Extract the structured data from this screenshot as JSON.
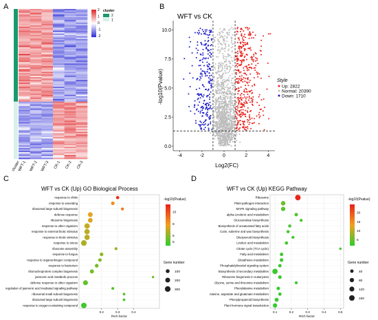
{
  "panels": {
    "a": "A",
    "b": "B",
    "c": "C",
    "d": "D"
  },
  "colors": {
    "heat_low": "#2b2bd6",
    "heat_mid": "#ffffff",
    "heat_high": "#e0262a",
    "cluster_1": "#1a9a6c",
    "cluster_2": "#d8f0ea",
    "up": "#e8201a",
    "down": "#1c1ccc",
    "normal": "#bdbdbd",
    "dot_low": "#2ecc2e",
    "dot_high": "#e8201a"
  },
  "chart_data": [
    {
      "type": "heatmap",
      "legend_title": "cluster",
      "legend_ticks": [
        "2",
        "1",
        "0",
        "-1",
        "-2"
      ],
      "cluster_legend": [
        "2",
        "1"
      ],
      "row_annotation_label": "cluster",
      "columns": [
        "WFT-1",
        "WFT-2",
        "WFT-3",
        "CK-1",
        "CK-2",
        "CK-3"
      ]
    },
    {
      "type": "scatter",
      "title": "WFT vs CK",
      "xlabel": "Log2(FC)",
      "ylabel": "-log10(Pvalue)",
      "xlim": [
        -4.6,
        4.6
      ],
      "ylim": [
        -0.4,
        10.8
      ],
      "xticks": [
        "-4",
        "-2",
        "0",
        "2",
        "4"
      ],
      "yticks": [
        "0.0",
        "2.5",
        "5.0",
        "7.5",
        "10.0"
      ],
      "thresholds": {
        "log2fc": [
          -1,
          1
        ],
        "neg_log10_p": 1.3
      },
      "legend": {
        "title": "Style",
        "entries": [
          "Up: 2822",
          "Normal: 20390",
          "Down: 1710"
        ]
      }
    },
    {
      "type": "scatter",
      "title": "WFT vs CK (Up) GO Biological Process",
      "xlabel": "Rich factor",
      "xticks": [
        0.2,
        0.3,
        0.4
      ],
      "xlim": [
        0.06,
        0.56
      ],
      "color_legend": {
        "title": "-log10(Pvalue)",
        "ticks": [
          10,
          8,
          6,
          5
        ],
        "min": 4.3,
        "max": 11.2
      },
      "size_legend": {
        "title": "Gene number",
        "ticks": [
          100,
          200,
          300
        ]
      },
      "categories": [
        "response to chitin",
        "response to wounding",
        "ribosomal large subunit biogenesis",
        "defense response",
        "ribosome biogenesis",
        "response to other organism",
        "response to external biotic stimulus",
        "response to biotic stimulus",
        "response to stress",
        "ribosome assembly",
        "response to fungus",
        "response to organonitrogen compound",
        "response to bacterium",
        "ribonucleoprotein complex biogenesis",
        "jasmonic acid metabolic process",
        "defense response to other organism",
        "regulation of jasmonic acid mediated signaling pathway",
        "ribosomal small subunit biogenesis",
        "ribosomal large subunit biogenesis",
        "response to oxygen-containing compound"
      ],
      "points": [
        {
          "x": 0.3,
          "p": 10.8,
          "n": 60
        },
        {
          "x": 0.27,
          "p": 8.2,
          "n": 80
        },
        {
          "x": 0.33,
          "p": 8.9,
          "n": 40
        },
        {
          "x": 0.13,
          "p": 7.6,
          "n": 190
        },
        {
          "x": 0.13,
          "p": 7.4,
          "n": 170
        },
        {
          "x": 0.11,
          "p": 7.0,
          "n": 260
        },
        {
          "x": 0.11,
          "p": 6.8,
          "n": 250
        },
        {
          "x": 0.11,
          "p": 6.8,
          "n": 250
        },
        {
          "x": 0.09,
          "p": 6.5,
          "n": 310
        },
        {
          "x": 0.29,
          "p": 6.3,
          "n": 40
        },
        {
          "x": 0.2,
          "p": 6.0,
          "n": 80
        },
        {
          "x": 0.19,
          "p": 5.8,
          "n": 70
        },
        {
          "x": 0.17,
          "p": 5.6,
          "n": 90
        },
        {
          "x": 0.14,
          "p": 5.5,
          "n": 120
        },
        {
          "x": 0.52,
          "p": 5.4,
          "n": 15
        },
        {
          "x": 0.1,
          "p": 5.2,
          "n": 210
        },
        {
          "x": 0.27,
          "p": 5.0,
          "n": 35
        },
        {
          "x": 0.34,
          "p": 4.9,
          "n": 25
        },
        {
          "x": 0.34,
          "p": 4.8,
          "n": 25
        },
        {
          "x": 0.09,
          "p": 4.6,
          "n": 280
        }
      ]
    },
    {
      "type": "scatter",
      "title": "WFT vs CK (Up) KEGG Pathway",
      "xlabel": "Rich factor",
      "xticks": [
        0.1,
        0.2,
        0.3,
        0.4,
        0.5
      ],
      "xlim": [
        0.07,
        0.52
      ],
      "color_legend": {
        "title": "-log10(Pvalue)",
        "ticks": [
          20,
          15,
          10,
          5
        ],
        "min": 1.5,
        "max": 24.5
      },
      "size_legend": {
        "title": "Gene number",
        "ticks": [
          40,
          80,
          120,
          160
        ]
      },
      "categories": [
        "Ribosome",
        "Plant-pathogen interaction",
        "MAPK signaling pathway",
        "alpha-Linolenic acid metabolism",
        "Glucosinolate biosynthesis",
        "Biosynthesis of unsaturated fatty acids",
        "Cutin, suberine and wax biosynthesis",
        "Diterpenoid biosynthesis",
        "Linoleic acid metabolism",
        "Citrate cycle (TCA cycle)",
        "Fatty acid metabolism",
        "Glutathione metabolism",
        "Phosphatidylinositol signaling system",
        "Biosynthesis of secondary metabolites",
        "Ribosome biogenesis in eukaryotes",
        "Glycine, serine and threonine metabolism",
        "Phenylalanine metabolism",
        "Alanine, aspartate and glutamate metabolism",
        "Phenylpropanoid biosynthesis",
        "Plant hormone signal transduction"
      ],
      "points": [
        {
          "x": 0.24,
          "p": 24.0,
          "n": 160
        },
        {
          "x": 0.15,
          "p": 5.0,
          "n": 90
        },
        {
          "x": 0.15,
          "p": 4.2,
          "n": 80
        },
        {
          "x": 0.23,
          "p": 3.5,
          "n": 40
        },
        {
          "x": 0.26,
          "p": 3.4,
          "n": 25
        },
        {
          "x": 0.19,
          "p": 3.0,
          "n": 30
        },
        {
          "x": 0.18,
          "p": 3.0,
          "n": 30
        },
        {
          "x": 0.21,
          "p": 2.9,
          "n": 25
        },
        {
          "x": 0.17,
          "p": 2.8,
          "n": 35
        },
        {
          "x": 0.5,
          "p": 2.6,
          "n": 10
        },
        {
          "x": 0.14,
          "p": 2.5,
          "n": 40
        },
        {
          "x": 0.14,
          "p": 2.4,
          "n": 45
        },
        {
          "x": 0.13,
          "p": 2.3,
          "n": 40
        },
        {
          "x": 0.1,
          "p": 2.3,
          "n": 150
        },
        {
          "x": 0.13,
          "p": 2.2,
          "n": 45
        },
        {
          "x": 0.23,
          "p": 2.1,
          "n": 25
        },
        {
          "x": 0.12,
          "p": 2.0,
          "n": 40
        },
        {
          "x": 0.13,
          "p": 2.0,
          "n": 35
        },
        {
          "x": 0.11,
          "p": 1.9,
          "n": 60
        },
        {
          "x": 0.1,
          "p": 1.8,
          "n": 80
        }
      ]
    }
  ]
}
